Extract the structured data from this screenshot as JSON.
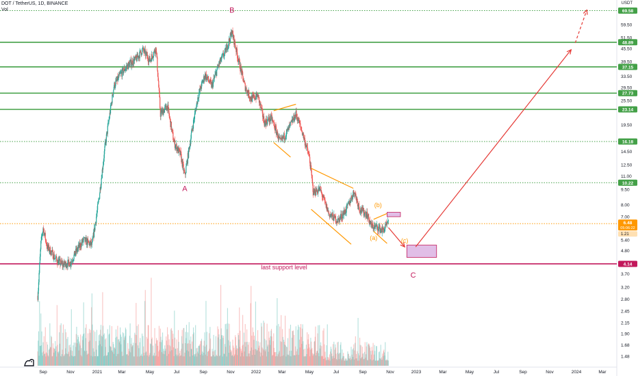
{
  "header": {
    "symbol_line": "DOT / TetherUS, 1D, BINANCE",
    "volume_label": "Vol",
    "currency_unit": "USDT"
  },
  "colors": {
    "up": "#26a69a",
    "down": "#ef5350",
    "level_line": "#43a047",
    "support_line": "#c2185b",
    "forecast": "#e53935",
    "pattern": "#ff9800",
    "current_price": "#ff9800",
    "target_box": "#e1bee7"
  },
  "chart_data": {
    "type": "candlestick",
    "title": "DOT / TetherUS, 1D, BINANCE",
    "y_scale": "log",
    "y_range": [
      1.4,
      80
    ],
    "x_ticks": [
      "Sep",
      "Nov",
      "2021",
      "Mar",
      "May",
      "Jul",
      "Sep",
      "Nov",
      "2022",
      "Mar",
      "May",
      "Jul",
      "Sep",
      "Nov",
      "2023",
      "Mar",
      "May",
      "Jul",
      "Sep",
      "Nov",
      "2024",
      "Mar"
    ],
    "y_ticks": [
      "59.50",
      "51.50",
      "45.50",
      "39.50",
      "33.50",
      "29.50",
      "25.50",
      "19.50",
      "14.50",
      "12.50",
      "11.00",
      "9.50",
      "8.00",
      "7.00",
      "5.40",
      "4.80",
      "3.70",
      "3.20",
      "2.80",
      "2.45",
      "2.15",
      "1.90",
      "1.68",
      "1.48"
    ],
    "horizontal_levels": [
      {
        "price": 69.58,
        "label": "69.58",
        "style": "dotted"
      },
      {
        "price": 48.89,
        "label": "48.89",
        "style": "solid"
      },
      {
        "price": 37.15,
        "label": "37.15",
        "style": "solid"
      },
      {
        "price": 27.73,
        "label": "27.73",
        "style": "solid"
      },
      {
        "price": 23.14,
        "label": "23.14",
        "style": "solid"
      },
      {
        "price": 16.18,
        "label": "16.18",
        "style": "dotted"
      },
      {
        "price": 10.22,
        "label": "10.22",
        "style": "dotted"
      }
    ],
    "support_level": {
      "price": 4.14,
      "label": "4.14",
      "text": "last support level"
    },
    "current_price": {
      "price": 6.48,
      "label": "6.48",
      "countdown": "05:06:22",
      "sub_label": "1.21"
    },
    "closes": [
      {
        "t": "2020-08-20",
        "v": 2.9
      },
      {
        "t": "2020-08-27",
        "v": 5.2
      },
      {
        "t": "2020-09-01",
        "v": 6.2
      },
      {
        "t": "2020-09-10",
        "v": 5.0
      },
      {
        "t": "2020-09-20",
        "v": 4.7
      },
      {
        "t": "2020-10-01",
        "v": 4.3
      },
      {
        "t": "2020-10-15",
        "v": 4.1
      },
      {
        "t": "2020-11-01",
        "v": 4.2
      },
      {
        "t": "2020-11-15",
        "v": 4.8
      },
      {
        "t": "2020-12-01",
        "v": 5.4
      },
      {
        "t": "2020-12-20",
        "v": 5.1
      },
      {
        "t": "2021-01-05",
        "v": 8.5
      },
      {
        "t": "2021-01-20",
        "v": 15.5
      },
      {
        "t": "2021-02-10",
        "v": 30.0
      },
      {
        "t": "2021-02-25",
        "v": 34.0
      },
      {
        "t": "2021-03-15",
        "v": 38.0
      },
      {
        "t": "2021-04-01",
        "v": 40.5
      },
      {
        "t": "2021-04-15",
        "v": 45.0
      },
      {
        "t": "2021-05-01",
        "v": 40.0
      },
      {
        "t": "2021-05-15",
        "v": 46.0
      },
      {
        "t": "2021-05-25",
        "v": 22.0
      },
      {
        "t": "2021-06-10",
        "v": 24.0
      },
      {
        "t": "2021-06-25",
        "v": 16.0
      },
      {
        "t": "2021-07-10",
        "v": 14.0
      },
      {
        "t": "2021-07-20",
        "v": 11.0
      },
      {
        "t": "2021-08-05",
        "v": 18.0
      },
      {
        "t": "2021-08-20",
        "v": 27.0
      },
      {
        "t": "2021-09-05",
        "v": 34.0
      },
      {
        "t": "2021-09-20",
        "v": 30.0
      },
      {
        "t": "2021-10-05",
        "v": 38.0
      },
      {
        "t": "2021-10-20",
        "v": 44.0
      },
      {
        "t": "2021-11-04",
        "v": 55.0
      },
      {
        "t": "2021-11-20",
        "v": 40.0
      },
      {
        "t": "2021-12-05",
        "v": 30.0
      },
      {
        "t": "2021-12-20",
        "v": 26.0
      },
      {
        "t": "2022-01-05",
        "v": 27.0
      },
      {
        "t": "2022-01-20",
        "v": 20.0
      },
      {
        "t": "2022-02-05",
        "v": 21.0
      },
      {
        "t": "2022-02-25",
        "v": 16.0
      },
      {
        "t": "2022-03-15",
        "v": 18.5
      },
      {
        "t": "2022-04-01",
        "v": 22.0
      },
      {
        "t": "2022-04-15",
        "v": 18.0
      },
      {
        "t": "2022-05-01",
        "v": 13.5
      },
      {
        "t": "2022-05-10",
        "v": 9.2
      },
      {
        "t": "2022-05-25",
        "v": 9.5
      },
      {
        "t": "2022-06-15",
        "v": 7.2
      },
      {
        "t": "2022-07-05",
        "v": 6.7
      },
      {
        "t": "2022-07-25",
        "v": 7.6
      },
      {
        "t": "2022-08-12",
        "v": 9.3
      },
      {
        "t": "2022-08-25",
        "v": 7.6
      },
      {
        "t": "2022-09-10",
        "v": 7.2
      },
      {
        "t": "2022-09-20",
        "v": 6.3
      },
      {
        "t": "2022-10-05",
        "v": 6.2
      },
      {
        "t": "2022-10-15",
        "v": 6.0
      },
      {
        "t": "2022-10-28",
        "v": 6.48
      }
    ],
    "wave_labels": [
      {
        "text": "A",
        "t": "2021-07-20",
        "price": 9.3
      },
      {
        "text": "B",
        "t": "2021-11-04",
        "price": 68.0
      },
      {
        "text": "(b)",
        "t": "2022-10-05",
        "price": 7.8
      },
      {
        "text": "(a)",
        "t": "2022-09-25",
        "price": 5.4
      },
      {
        "text": "(c)",
        "t": "2022-12-05",
        "price": 5.25
      },
      {
        "text": "C",
        "t": "2022-12-25",
        "price": 3.55
      }
    ],
    "annotation": "last support level",
    "target_zone": {
      "t_start": "2022-12-10",
      "t_end": "2023-02-15",
      "price_low": 4.45,
      "price_high": 5.1
    },
    "b_zone": {
      "t_start": "2022-10-25",
      "t_end": "2022-11-25",
      "price_low": 7.0,
      "price_high": 7.35
    },
    "forecast_path": [
      {
        "t": "2022-10-28",
        "price": 6.2
      },
      {
        "t": "2022-12-05",
        "price": 5.0
      },
      {
        "t": "2022-12-05",
        "price": 5.0
      },
      {
        "t": "2023-12-20",
        "price": 45.0
      },
      {
        "t": "2024-01-25",
        "price": 70.0
      }
    ]
  }
}
